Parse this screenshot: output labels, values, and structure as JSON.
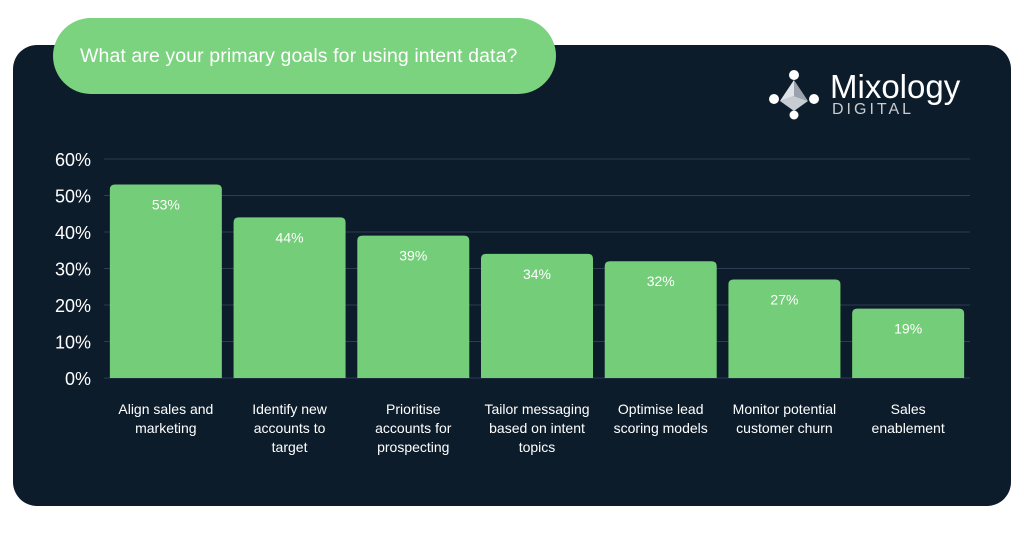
{
  "header": {
    "question": "What are your primary goals for using intent data?"
  },
  "brand": {
    "name": "Mixology",
    "sub": "DIGITAL",
    "icon": "mixology-logo-icon"
  },
  "colors": {
    "panel": "#0d1c2b",
    "bar": "#74cd78",
    "pill": "#7bd27f",
    "grid": "#2b3d50",
    "text": "#ffffff"
  },
  "chart_data": {
    "type": "bar",
    "title": "",
    "xlabel": "",
    "ylabel": "",
    "ylim": [
      0,
      60
    ],
    "yticks": [
      0,
      10,
      20,
      30,
      40,
      50,
      60
    ],
    "ytick_labels": [
      "0%",
      "10%",
      "20%",
      "30%",
      "40%",
      "50%",
      "60%"
    ],
    "grid": true,
    "categories": [
      [
        "Align sales and",
        "marketing"
      ],
      [
        "Identify new",
        "accounts to",
        "target"
      ],
      [
        "Prioritise",
        "accounts for",
        "prospecting"
      ],
      [
        "Tailor messaging",
        "based on intent",
        "topics"
      ],
      [
        "Optimise lead",
        "scoring models"
      ],
      [
        "Monitor potential",
        "customer churn"
      ],
      [
        "Sales",
        "enablement"
      ]
    ],
    "values": [
      53,
      44,
      39,
      34,
      32,
      27,
      19
    ],
    "value_labels": [
      "53%",
      "44%",
      "39%",
      "34%",
      "32%",
      "27%",
      "19%"
    ]
  }
}
